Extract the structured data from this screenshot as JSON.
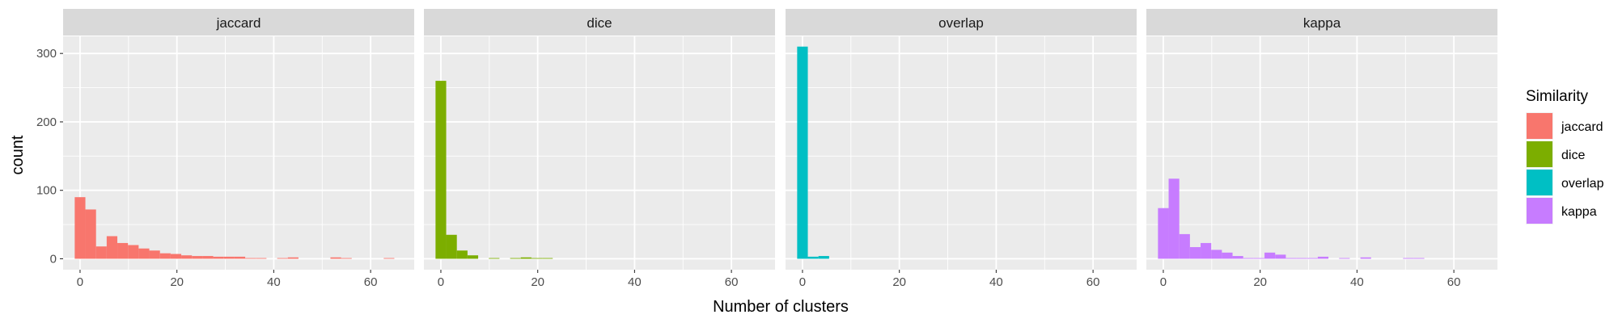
{
  "chart_data": {
    "type": "bar",
    "subtype": "faceted-histogram",
    "xlabel": "Number of clusters",
    "ylabel": "count",
    "xlim": [
      -3.5,
      69
    ],
    "ylim": [
      -16,
      325
    ],
    "x_ticks": [
      0,
      20,
      40,
      60
    ],
    "y_ticks": [
      0,
      100,
      200,
      300
    ],
    "bin_width": 2.2,
    "grid": true,
    "legend": {
      "title": "Similarity",
      "position": "right",
      "entries": [
        {
          "label": "jaccard",
          "color": "#F8766D"
        },
        {
          "label": "dice",
          "color": "#7CAE00"
        },
        {
          "label": "overlap",
          "color": "#00BFC4"
        },
        {
          "label": "kappa",
          "color": "#C77CFF"
        }
      ]
    },
    "facets": [
      {
        "name": "jaccard",
        "color": "#F8766D",
        "bin_starts": [
          -1.1,
          1.1,
          3.3,
          5.5,
          7.7,
          9.9,
          12.1,
          14.3,
          16.5,
          18.7,
          20.9,
          23.1,
          25.3,
          27.5,
          29.7,
          31.9,
          34.1,
          36.3,
          38.5,
          40.7,
          42.9,
          45.1,
          47.3,
          49.5,
          51.7,
          53.9,
          56.1,
          58.3,
          60.5,
          62.7
        ],
        "counts": [
          90,
          72,
          18,
          33,
          23,
          20,
          15,
          12,
          8,
          7,
          5,
          4,
          4,
          3,
          3,
          3,
          1,
          1,
          0,
          1,
          2,
          0,
          0,
          0,
          2,
          1,
          0,
          0,
          0,
          1
        ]
      },
      {
        "name": "dice",
        "color": "#7CAE00",
        "bin_starts": [
          -1.1,
          1.1,
          3.3,
          5.5,
          7.7,
          9.9,
          12.1,
          14.3,
          16.5,
          18.7,
          20.9
        ],
        "counts": [
          260,
          35,
          12,
          5,
          0,
          1,
          0,
          1,
          2,
          1,
          1
        ]
      },
      {
        "name": "overlap",
        "color": "#00BFC4",
        "bin_starts": [
          -1.1,
          1.1,
          3.3
        ],
        "counts": [
          310,
          3,
          4
        ]
      },
      {
        "name": "kappa",
        "color": "#C77CFF",
        "bin_starts": [
          -1.1,
          1.1,
          3.3,
          5.5,
          7.7,
          9.9,
          12.1,
          14.3,
          16.5,
          18.7,
          20.9,
          23.1,
          25.3,
          27.5,
          29.7,
          31.9,
          34.1,
          36.3,
          38.5,
          40.7,
          42.9,
          45.1,
          47.3,
          49.5,
          51.7
        ],
        "counts": [
          74,
          117,
          36,
          17,
          23,
          13,
          9,
          4,
          1,
          1,
          9,
          6,
          1,
          1,
          1,
          3,
          0,
          1,
          0,
          2,
          0,
          0,
          0,
          1,
          1
        ]
      }
    ]
  }
}
